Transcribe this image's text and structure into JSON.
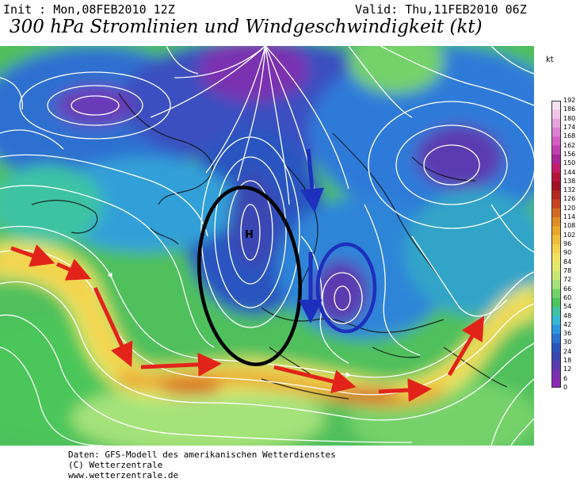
{
  "header": {
    "init": "Init : Mon,08FEB2010 12Z",
    "valid": "Valid: Thu,11FEB2010 06Z",
    "title": "300 hPa Stromlinien und Windgeschwindigkeit (kt)"
  },
  "map": {
    "marker_label": "H",
    "annotations": {
      "black_ellipse": "black-outline",
      "blue_ellipse": "blue-outline",
      "red_arrows": "jet-stream-path",
      "blue_arrows": "cold-air-flow"
    },
    "colors": {
      "jet": "#e8b030",
      "arrow_red": "#e2231a",
      "arrow_blue": "#1c2fbd",
      "ring_black": "#000000"
    }
  },
  "colorbar": {
    "unit": "kt",
    "levels": [
      "192",
      "186",
      "180",
      "174",
      "168",
      "162",
      "156",
      "150",
      "144",
      "138",
      "132",
      "126",
      "120",
      "114",
      "108",
      "102",
      "96",
      "90",
      "84",
      "78",
      "72",
      "66",
      "60",
      "54",
      "48",
      "42",
      "36",
      "30",
      "24",
      "18",
      "12",
      "6",
      "0"
    ],
    "colors": [
      "#f6e2f2",
      "#efc5e8",
      "#e6a3dc",
      "#dc80d0",
      "#d45ec4",
      "#c23fb3",
      "#a92699",
      "#c21c6b",
      "#b6123b",
      "#a11023",
      "#b22a1e",
      "#c84420",
      "#d66a22",
      "#e08c24",
      "#e9a82a",
      "#efbe3c",
      "#f4d24c",
      "#f2e160",
      "#e3e86a",
      "#c8e874",
      "#a4e27a",
      "#74d26a",
      "#4cc65a",
      "#3cc3a4",
      "#34b7d2",
      "#2b97e0",
      "#2972d2",
      "#2a55bc",
      "#3a46b2",
      "#5b3bb0",
      "#7a32b0",
      "#8c2ab4",
      "#9a24bb"
    ]
  },
  "footer": {
    "line1": "Daten: GFS-Modell des amerikanischen Wetterdienstes",
    "line2": "(C) Wetterzentrale",
    "line3": "www.wetterzentrale.de"
  }
}
